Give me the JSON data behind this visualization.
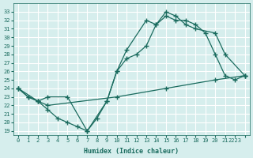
{
  "xlabel": "Humidex (Indice chaleur)",
  "ylabel": "",
  "background_color": "#d6eeed",
  "line_color": "#1a6b5e",
  "grid_color": "#ffffff",
  "xlim": [
    -0.5,
    23.5
  ],
  "ylim": [
    18.5,
    34
  ],
  "xticks": [
    0,
    1,
    2,
    3,
    4,
    5,
    6,
    7,
    8,
    9,
    10,
    11,
    12,
    13,
    14,
    15,
    16,
    17,
    18,
    19,
    20,
    21,
    22,
    23
  ],
  "xtick_labels": [
    "0",
    "1",
    "2",
    "3",
    "4",
    "5",
    "6",
    "7",
    "8",
    "9",
    "10",
    "11",
    "12",
    "13",
    "14",
    "15",
    "16",
    "17",
    "18",
    "19",
    "20",
    "21",
    "2223",
    ""
  ],
  "yticks": [
    19,
    20,
    21,
    22,
    23,
    24,
    25,
    26,
    27,
    28,
    29,
    30,
    31,
    32,
    33
  ],
  "line1_x": [
    0,
    1,
    2,
    3,
    4,
    5,
    6,
    7,
    8,
    9,
    10,
    11,
    12,
    13,
    14,
    15,
    16,
    17,
    18,
    19,
    20,
    21,
    22,
    23
  ],
  "line1_y": [
    24.0,
    23.0,
    22.5,
    21.5,
    20.5,
    20.0,
    19.5,
    19.0,
    20.5,
    22.5,
    26.0,
    27.5,
    28.0,
    29.0,
    31.5,
    32.5,
    32.0,
    32.0,
    31.5,
    30.5,
    28.0,
    25.5,
    25.0,
    25.5
  ],
  "line2_x": [
    0,
    2,
    3,
    5,
    7,
    9,
    10,
    11,
    13,
    14,
    15,
    16,
    17,
    18,
    20,
    21,
    23
  ],
  "line2_y": [
    24.0,
    22.5,
    23.0,
    23.0,
    19.0,
    22.5,
    26.0,
    28.5,
    32.0,
    31.5,
    33.0,
    32.5,
    31.5,
    31.0,
    30.5,
    28.0,
    25.5
  ],
  "line3_x": [
    0,
    1,
    2,
    3,
    10,
    15,
    20,
    23
  ],
  "line3_y": [
    24.0,
    23.0,
    22.5,
    22.0,
    23.0,
    24.0,
    25.0,
    25.5
  ]
}
